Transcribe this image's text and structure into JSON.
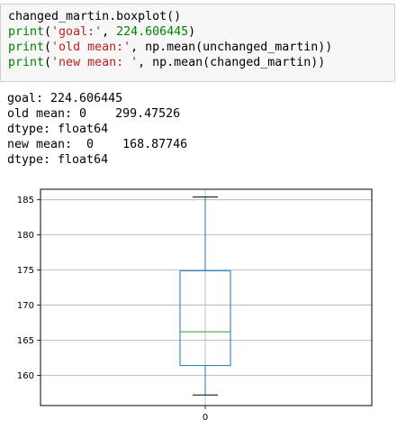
{
  "code_cell": {
    "lines": [
      [
        {
          "t": "changed_martin.boxplot()",
          "c": "plain"
        }
      ],
      [
        {
          "t": "print",
          "c": "kw"
        },
        {
          "t": "(",
          "c": "plain"
        },
        {
          "t": "'goal:'",
          "c": "str"
        },
        {
          "t": ", ",
          "c": "plain"
        },
        {
          "t": "224.606445",
          "c": "num"
        },
        {
          "t": ")",
          "c": "plain"
        }
      ],
      [
        {
          "t": "print",
          "c": "kw"
        },
        {
          "t": "(",
          "c": "plain"
        },
        {
          "t": "'old mean:'",
          "c": "str"
        },
        {
          "t": ", np.mean(unchanged_martin))",
          "c": "plain"
        }
      ],
      [
        {
          "t": "print",
          "c": "kw"
        },
        {
          "t": "(",
          "c": "plain"
        },
        {
          "t": "'new mean: '",
          "c": "str"
        },
        {
          "t": ", np.mean(changed_martin))",
          "c": "plain"
        }
      ]
    ]
  },
  "output": {
    "lines": [
      "goal: 224.606445",
      "old mean: 0    299.47526",
      "dtype: float64",
      "new mean:  0    168.87746",
      "dtype: float64"
    ]
  },
  "chart_data": {
    "type": "boxplot",
    "categories": [
      "0"
    ],
    "boxes": [
      {
        "category": "0",
        "whisker_low": 157.2,
        "q1": 161.4,
        "median": 166.2,
        "q3": 174.9,
        "whisker_high": 185.4
      }
    ],
    "ylim": [
      155.7,
      186.5
    ],
    "yticks": [
      160,
      165,
      170,
      175,
      180,
      185
    ],
    "grid": true,
    "colors": {
      "box": "#1f77b4",
      "median": "#2ca02c",
      "whisker": "#1f77b4",
      "cap": "#000000",
      "grid": "#b0b0b0"
    }
  }
}
